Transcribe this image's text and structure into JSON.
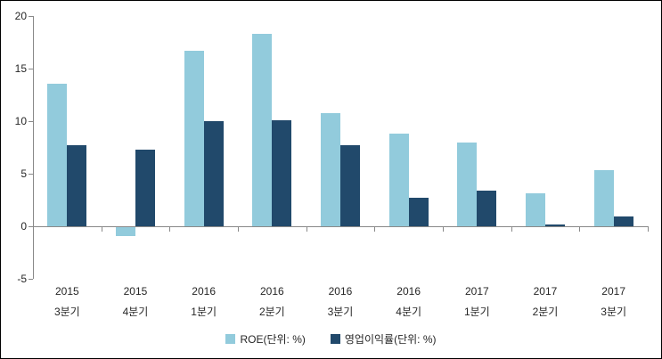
{
  "chart_data": {
    "type": "bar",
    "title": "",
    "xlabel": "",
    "ylabel": "",
    "categories": [
      [
        "2015",
        "3분기"
      ],
      [
        "2015",
        "4분기"
      ],
      [
        "2016",
        "1분기"
      ],
      [
        "2016",
        "2분기"
      ],
      [
        "2016",
        "3분기"
      ],
      [
        "2016",
        "4분기"
      ],
      [
        "2017",
        "1분기"
      ],
      [
        "2017",
        "2분기"
      ],
      [
        "2017",
        "3분기"
      ]
    ],
    "series": [
      {
        "name": "ROE(단위: %)",
        "color": "#92CBDC",
        "values": [
          13.6,
          -0.9,
          16.7,
          18.3,
          10.8,
          8.8,
          8.0,
          3.1,
          5.3
        ]
      },
      {
        "name": "영업이익률(단위: %)",
        "color": "#21496B",
        "values": [
          7.7,
          7.3,
          10.0,
          10.1,
          7.7,
          2.7,
          3.4,
          0.2,
          0.9
        ]
      }
    ],
    "ylim": [
      -5,
      20
    ],
    "yticks": [
      20,
      15,
      10,
      5,
      0,
      -5
    ],
    "grid": false,
    "legend_position": "bottom",
    "axis_color": "#898989",
    "text_color": "#262626"
  }
}
